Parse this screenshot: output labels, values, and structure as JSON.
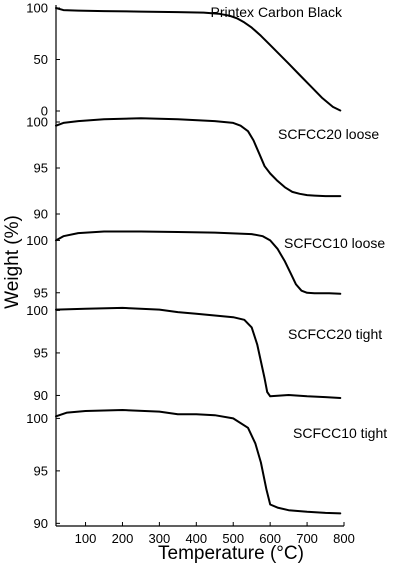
{
  "chart_data": {
    "type": "line",
    "xlabel": "Temperature (°C)",
    "ylabel": "Weight (%)",
    "xlim": [
      20,
      800
    ],
    "x_ticks": [
      100,
      200,
      300,
      400,
      500,
      600,
      700,
      800
    ],
    "panels": [
      {
        "name": "Printex Carbon Black",
        "ylim": [
          0,
          100
        ],
        "y_ticks": [
          0,
          50,
          100
        ],
        "x": [
          20,
          40,
          80,
          150,
          250,
          350,
          420,
          460,
          490,
          510,
          530,
          550,
          575,
          600,
          625,
          650,
          680,
          710,
          740,
          770,
          790
        ],
        "y": [
          100,
          98,
          97.5,
          97,
          96.5,
          96,
          95.5,
          94.5,
          92.5,
          90,
          86,
          81,
          73,
          64,
          55,
          46,
          35,
          24,
          13,
          4,
          0.5
        ]
      },
      {
        "name": "SCFCC20 loose",
        "ylim": [
          90,
          100
        ],
        "y_ticks": [
          90,
          95,
          100
        ],
        "x": [
          20,
          40,
          80,
          150,
          250,
          350,
          450,
          500,
          520,
          540,
          555,
          570,
          585,
          600,
          620,
          640,
          660,
          680,
          700,
          720,
          750,
          790
        ],
        "y": [
          99.6,
          99.9,
          100.1,
          100.3,
          100.4,
          100.3,
          100.1,
          99.9,
          99.6,
          99.0,
          98.0,
          96.6,
          95.2,
          94.4,
          93.6,
          92.9,
          92.4,
          92.2,
          92.05,
          92.0,
          91.95,
          91.95
        ]
      },
      {
        "name": "SCFCC10 loose",
        "ylim": [
          94.5,
          100.9
        ],
        "y_ticks": [
          95,
          100
        ],
        "x": [
          20,
          40,
          80,
          150,
          250,
          350,
          450,
          550,
          580,
          600,
          620,
          640,
          655,
          670,
          685,
          700,
          720,
          760,
          790
        ],
        "y": [
          100.0,
          100.4,
          100.7,
          100.85,
          100.85,
          100.8,
          100.75,
          100.6,
          100.4,
          100.0,
          99.2,
          98.0,
          96.9,
          95.8,
          95.2,
          95.0,
          94.95,
          94.95,
          94.9
        ]
      },
      {
        "name": "SCFCC20 tight",
        "ylim": [
          89.7,
          100.4
        ],
        "y_ticks": [
          90,
          95,
          100
        ],
        "x": [
          20,
          100,
          200,
          300,
          350,
          400,
          450,
          500,
          530,
          550,
          565,
          575,
          585,
          592,
          600,
          650,
          700,
          750,
          790
        ],
        "y": [
          100.1,
          100.2,
          100.3,
          100.1,
          99.8,
          99.6,
          99.4,
          99.2,
          98.9,
          98.0,
          96.0,
          94.0,
          92.0,
          90.4,
          89.9,
          90.05,
          89.9,
          89.8,
          89.7
        ]
      },
      {
        "name": "SCFCC10 tight",
        "ylim": [
          90.7,
          100.8
        ],
        "y_ticks": [
          90,
          95,
          100
        ],
        "x": [
          20,
          50,
          100,
          200,
          300,
          350,
          400,
          450,
          500,
          540,
          560,
          575,
          590,
          600,
          620,
          650,
          700,
          750,
          790
        ],
        "y": [
          100.2,
          100.55,
          100.7,
          100.8,
          100.65,
          100.4,
          100.4,
          100.3,
          100.0,
          99.1,
          97.6,
          95.8,
          93.2,
          91.8,
          91.5,
          91.25,
          91.1,
          91.0,
          90.95
        ]
      }
    ]
  }
}
